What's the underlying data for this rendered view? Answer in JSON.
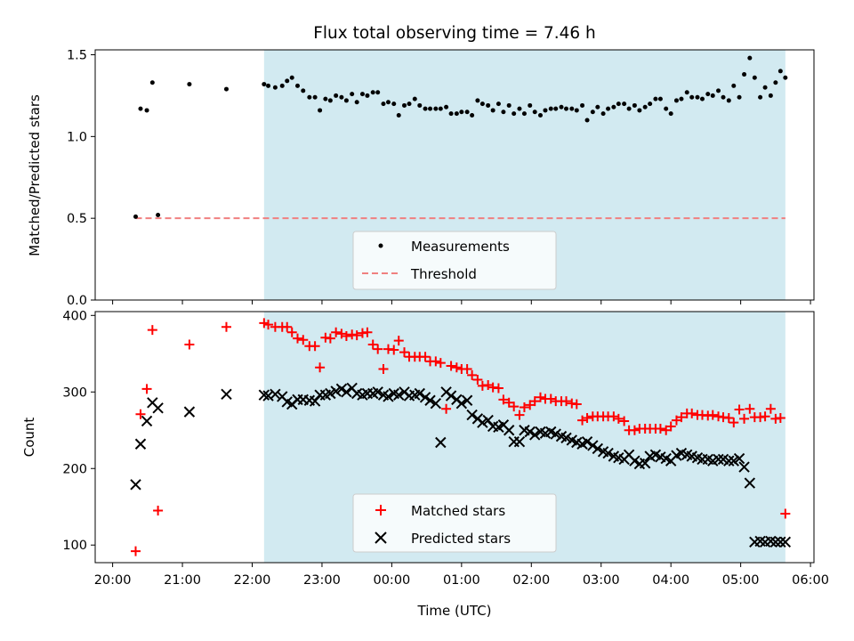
{
  "title": "Flux total observing time = 7.46 h",
  "colors": {
    "shade": "#add8e6",
    "measurement": "#000000",
    "threshold": "#f08080",
    "matched": "#ff0000",
    "predicted": "#000000"
  },
  "chart_data": [
    {
      "type": "scatter",
      "panel": "top",
      "ylabel": "Matched/Predicted stars",
      "ylim": [
        0,
        1.53
      ],
      "yticks": [
        0.0,
        0.5,
        1.0,
        1.5
      ],
      "ytick_labels": [
        "0.0",
        "0.5",
        "1.0",
        "1.5"
      ],
      "xlim": [
        -0.25,
        10.05
      ],
      "observing_window": [
        2.17,
        9.64
      ],
      "legend": [
        "Measurements",
        "Threshold"
      ],
      "legend_position": "lower center",
      "threshold": {
        "name": "Threshold",
        "value": 0.5,
        "x_range": [
          0.33,
          9.64
        ],
        "style": "dashed"
      },
      "series": [
        {
          "name": "Measurements",
          "marker": "dot",
          "x": [
            0.33,
            0.4,
            0.49,
            0.57,
            0.65,
            1.1,
            1.63,
            2.17,
            2.23,
            2.33,
            2.43,
            2.5,
            2.57,
            2.65,
            2.73,
            2.82,
            2.9,
            2.97,
            3.05,
            3.12,
            3.2,
            3.28,
            3.35,
            3.43,
            3.5,
            3.58,
            3.65,
            3.73,
            3.8,
            3.88,
            3.95,
            4.03,
            4.1,
            4.18,
            4.25,
            4.33,
            4.4,
            4.48,
            4.55,
            4.63,
            4.7,
            4.78,
            4.85,
            4.93,
            5.0,
            5.08,
            5.15,
            5.23,
            5.3,
            5.38,
            5.45,
            5.53,
            5.6,
            5.68,
            5.75,
            5.83,
            5.9,
            5.98,
            6.05,
            6.13,
            6.2,
            6.28,
            6.35,
            6.43,
            6.5,
            6.58,
            6.65,
            6.73,
            6.8,
            6.88,
            6.95,
            7.03,
            7.1,
            7.18,
            7.25,
            7.33,
            7.4,
            7.48,
            7.55,
            7.63,
            7.7,
            7.78,
            7.85,
            7.93,
            8.0,
            8.08,
            8.15,
            8.23,
            8.3,
            8.38,
            8.45,
            8.53,
            8.6,
            8.68,
            8.75,
            8.83,
            8.9,
            8.98,
            9.05,
            9.13,
            9.2,
            9.28,
            9.35,
            9.43,
            9.5,
            9.57,
            9.64
          ],
          "values": [
            0.51,
            1.17,
            1.16,
            1.33,
            0.52,
            1.32,
            1.29,
            1.32,
            1.31,
            1.3,
            1.31,
            1.34,
            1.36,
            1.31,
            1.28,
            1.24,
            1.24,
            1.16,
            1.23,
            1.22,
            1.25,
            1.24,
            1.22,
            1.26,
            1.21,
            1.26,
            1.25,
            1.27,
            1.27,
            1.2,
            1.21,
            1.2,
            1.13,
            1.19,
            1.2,
            1.23,
            1.19,
            1.17,
            1.17,
            1.17,
            1.17,
            1.18,
            1.14,
            1.14,
            1.15,
            1.15,
            1.13,
            1.22,
            1.2,
            1.19,
            1.16,
            1.2,
            1.15,
            1.19,
            1.14,
            1.17,
            1.14,
            1.19,
            1.15,
            1.13,
            1.16,
            1.17,
            1.17,
            1.18,
            1.17,
            1.17,
            1.16,
            1.19,
            1.1,
            1.15,
            1.18,
            1.14,
            1.17,
            1.18,
            1.2,
            1.2,
            1.17,
            1.19,
            1.16,
            1.18,
            1.2,
            1.23,
            1.23,
            1.17,
            1.14,
            1.22,
            1.23,
            1.27,
            1.24,
            1.24,
            1.23,
            1.26,
            1.25,
            1.28,
            1.24,
            1.22,
            1.31,
            1.24,
            1.38,
            1.48,
            1.36,
            1.24,
            1.3,
            1.25,
            1.33,
            1.4,
            1.36
          ]
        }
      ]
    },
    {
      "type": "scatter",
      "panel": "bottom",
      "xlabel": "Time (UTC)",
      "ylabel": "Count",
      "ylim": [
        77,
        405
      ],
      "yticks": [
        100,
        200,
        300,
        400
      ],
      "ytick_labels": [
        "100",
        "200",
        "300",
        "400"
      ],
      "xlim": [
        -0.25,
        10.05
      ],
      "xticks": [
        0,
        1,
        2,
        3,
        4,
        5,
        6,
        7,
        8,
        9,
        10
      ],
      "xtick_labels": [
        "20:00",
        "21:00",
        "22:00",
        "23:00",
        "00:00",
        "01:00",
        "02:00",
        "03:00",
        "04:00",
        "05:00",
        "06:00"
      ],
      "observing_window": [
        2.17,
        9.64
      ],
      "legend": [
        "Matched stars",
        "Predicted stars"
      ],
      "legend_position": "lower center",
      "series": [
        {
          "name": "Matched stars",
          "marker": "plus",
          "x": [
            0.33,
            0.4,
            0.49,
            0.57,
            0.65,
            1.1,
            1.63,
            2.17,
            2.23,
            2.33,
            2.43,
            2.5,
            2.57,
            2.65,
            2.73,
            2.82,
            2.9,
            2.97,
            3.05,
            3.12,
            3.2,
            3.28,
            3.35,
            3.43,
            3.5,
            3.58,
            3.65,
            3.73,
            3.8,
            3.88,
            3.95,
            4.03,
            4.1,
            4.18,
            4.25,
            4.33,
            4.4,
            4.48,
            4.55,
            4.63,
            4.7,
            4.78,
            4.85,
            4.93,
            5.0,
            5.08,
            5.15,
            5.23,
            5.3,
            5.38,
            5.45,
            5.53,
            5.6,
            5.68,
            5.75,
            5.83,
            5.9,
            5.98,
            6.05,
            6.13,
            6.2,
            6.28,
            6.35,
            6.43,
            6.5,
            6.58,
            6.65,
            6.73,
            6.8,
            6.88,
            6.95,
            7.03,
            7.1,
            7.18,
            7.25,
            7.33,
            7.4,
            7.48,
            7.55,
            7.63,
            7.7,
            7.78,
            7.85,
            7.93,
            8.0,
            8.08,
            8.15,
            8.23,
            8.3,
            8.38,
            8.45,
            8.53,
            8.6,
            8.68,
            8.75,
            8.83,
            8.9,
            8.98,
            9.05,
            9.13,
            9.2,
            9.28,
            9.35,
            9.43,
            9.5,
            9.57,
            9.64
          ],
          "values": [
            92,
            271,
            304,
            381,
            145,
            362,
            385,
            390,
            388,
            385,
            385,
            385,
            378,
            370,
            368,
            360,
            360,
            332,
            371,
            370,
            378,
            376,
            373,
            375,
            374,
            377,
            378,
            362,
            356,
            330,
            356,
            355,
            367,
            352,
            346,
            346,
            346,
            346,
            340,
            340,
            338,
            278,
            334,
            332,
            330,
            330,
            322,
            316,
            308,
            309,
            306,
            305,
            290,
            286,
            281,
            270,
            280,
            283,
            288,
            293,
            291,
            291,
            288,
            288,
            288,
            285,
            284,
            263,
            266,
            268,
            268,
            268,
            268,
            268,
            265,
            262,
            250,
            250,
            252,
            252,
            252,
            252,
            252,
            250,
            255,
            263,
            267,
            272,
            272,
            270,
            270,
            269,
            270,
            268,
            267,
            266,
            260,
            277,
            265,
            278,
            267,
            267,
            268,
            278,
            265,
            266,
            141
          ],
          "x_note": ""
        },
        {
          "name": "Predicted stars",
          "marker": "x",
          "x": [
            0.33,
            0.4,
            0.49,
            0.57,
            0.65,
            1.1,
            1.63,
            2.17,
            2.23,
            2.33,
            2.43,
            2.5,
            2.57,
            2.65,
            2.73,
            2.82,
            2.9,
            2.97,
            3.05,
            3.12,
            3.2,
            3.28,
            3.35,
            3.43,
            3.5,
            3.58,
            3.65,
            3.73,
            3.8,
            3.88,
            3.95,
            4.03,
            4.1,
            4.18,
            4.25,
            4.33,
            4.4,
            4.48,
            4.55,
            4.63,
            4.7,
            4.78,
            4.85,
            4.93,
            5.0,
            5.08,
            5.15,
            5.23,
            5.3,
            5.38,
            5.45,
            5.53,
            5.6,
            5.68,
            5.75,
            5.83,
            5.9,
            5.98,
            6.05,
            6.13,
            6.2,
            6.28,
            6.35,
            6.43,
            6.5,
            6.58,
            6.65,
            6.73,
            6.8,
            6.88,
            6.95,
            7.03,
            7.1,
            7.18,
            7.25,
            7.33,
            7.4,
            7.48,
            7.55,
            7.63,
            7.7,
            7.78,
            7.85,
            7.93,
            8.0,
            8.08,
            8.15,
            8.23,
            8.3,
            8.38,
            8.45,
            8.53,
            8.6,
            8.68,
            8.75,
            8.83,
            8.9,
            8.98,
            9.05,
            9.13,
            9.2,
            9.28,
            9.35,
            9.43,
            9.5,
            9.57,
            9.64
          ],
          "values": [
            179,
            232,
            262,
            286,
            279,
            274,
            297,
            296,
            295,
            297,
            294,
            287,
            284,
            290,
            290,
            289,
            288,
            296,
            296,
            298,
            301,
            304,
            300,
            305,
            298,
            296,
            298,
            298,
            300,
            296,
            294,
            298,
            296,
            300,
            295,
            296,
            298,
            293,
            289,
            285,
            234,
            300,
            295,
            290,
            285,
            289,
            270,
            265,
            260,
            263,
            255,
            254,
            257,
            250,
            235,
            235,
            250,
            248,
            244,
            248,
            246,
            248,
            245,
            242,
            240,
            237,
            234,
            232,
            235,
            230,
            226,
            222,
            220,
            216,
            214,
            212,
            218,
            210,
            206,
            207,
            216,
            218,
            215,
            213,
            210,
            217,
            220,
            218,
            216,
            214,
            212,
            212,
            210,
            212,
            212,
            210,
            210,
            213,
            202,
            181,
            104,
            105,
            104,
            105,
            104,
            104,
            104
          ],
          "x_note": ""
        }
      ]
    }
  ]
}
